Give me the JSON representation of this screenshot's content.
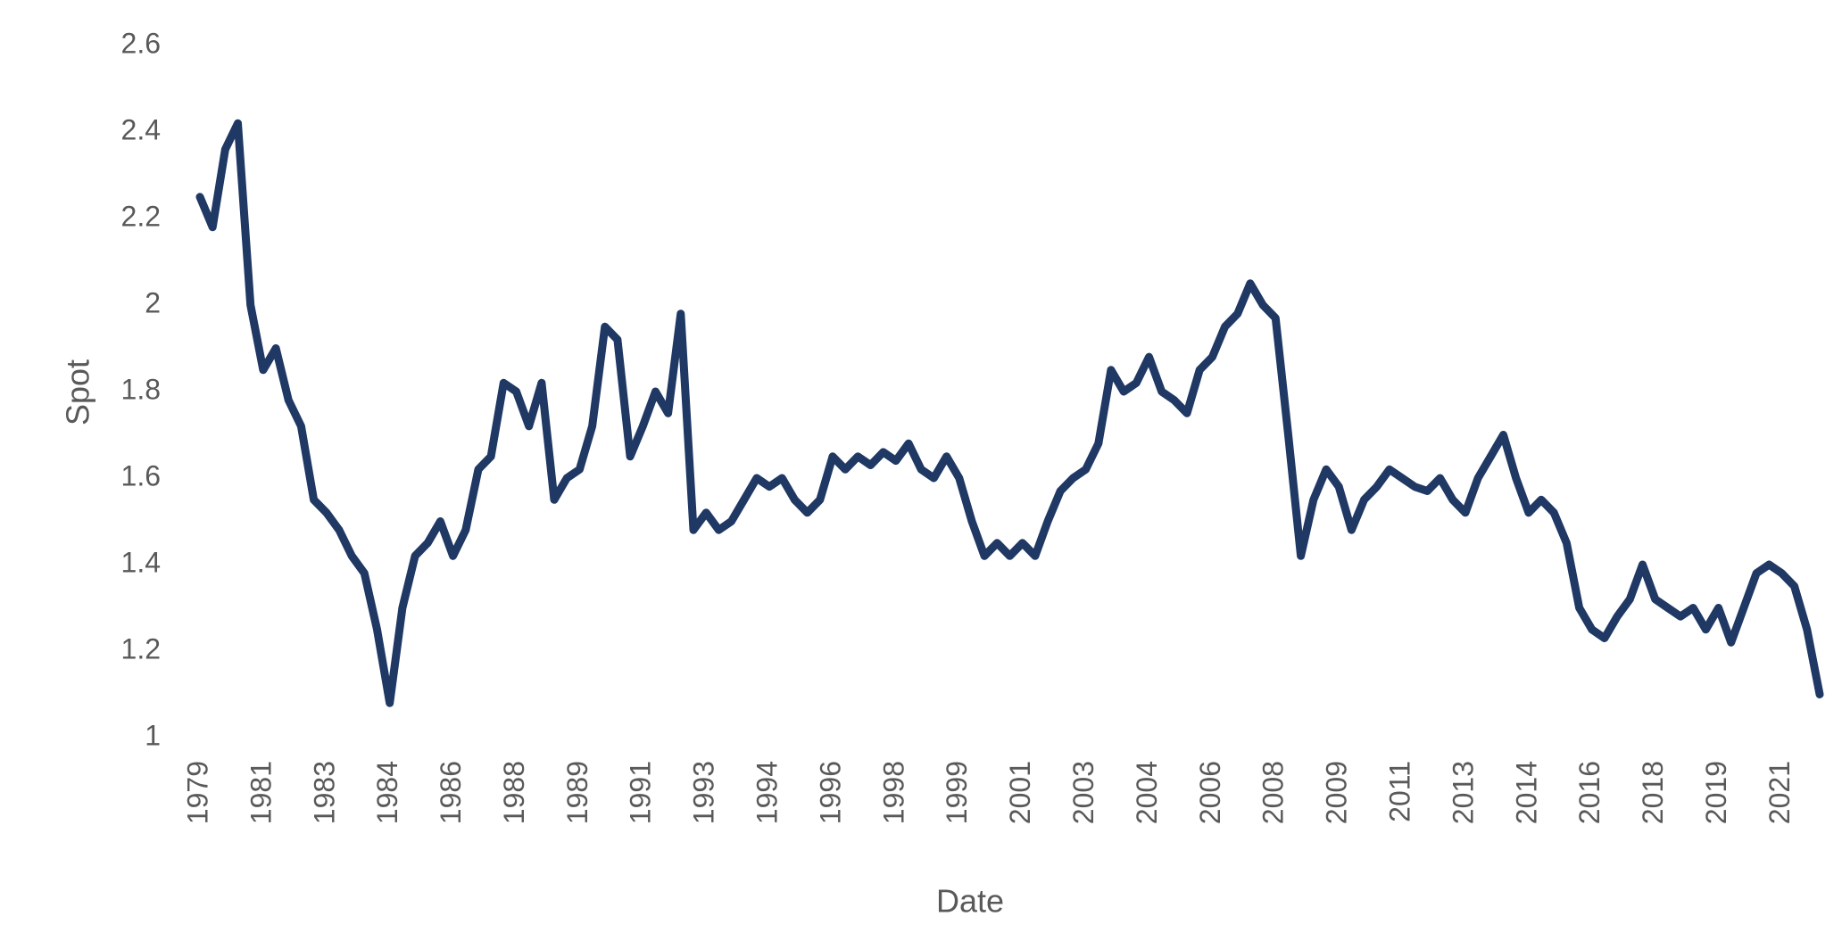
{
  "chart_data": {
    "type": "line",
    "x_label": "Date",
    "y_label": "Spot",
    "color": "#1f3864",
    "grid": false,
    "ylim": [
      1,
      2.6
    ],
    "yticks": [
      1,
      1.2,
      1.4,
      1.6,
      1.8,
      2,
      2.2,
      2.4,
      2.6
    ],
    "categories": [
      "1979",
      null,
      null,
      null,
      null,
      "1981",
      null,
      null,
      null,
      null,
      "1983",
      null,
      null,
      null,
      null,
      "1984",
      null,
      null,
      null,
      null,
      "1986",
      null,
      null,
      null,
      null,
      "1988",
      null,
      null,
      null,
      null,
      "1989",
      null,
      null,
      null,
      null,
      "1991",
      null,
      null,
      null,
      null,
      "1993",
      null,
      null,
      null,
      null,
      "1994",
      null,
      null,
      null,
      null,
      "1996",
      null,
      null,
      null,
      null,
      "1998",
      null,
      null,
      null,
      null,
      "1999",
      null,
      null,
      null,
      null,
      "2001",
      null,
      null,
      null,
      null,
      "2003",
      null,
      null,
      null,
      null,
      "2004",
      null,
      null,
      null,
      null,
      "2006",
      null,
      null,
      null,
      null,
      "2008",
      null,
      null,
      null,
      null,
      "2009",
      null,
      null,
      null,
      null,
      "2011",
      null,
      null,
      null,
      null,
      "2013",
      null,
      null,
      null,
      null,
      "2014",
      null,
      null,
      null,
      null,
      "2016",
      null,
      null,
      null,
      null,
      "2018",
      null,
      null,
      null,
      null,
      "2019",
      null,
      null,
      null,
      null,
      "2021",
      null,
      null,
      null
    ],
    "values": [
      2.25,
      2.18,
      2.36,
      2.42,
      2.0,
      1.85,
      1.9,
      1.78,
      1.72,
      1.55,
      1.52,
      1.48,
      1.42,
      1.38,
      1.25,
      1.08,
      1.3,
      1.42,
      1.45,
      1.5,
      1.42,
      1.48,
      1.62,
      1.65,
      1.82,
      1.8,
      1.72,
      1.82,
      1.55,
      1.6,
      1.62,
      1.72,
      1.95,
      1.92,
      1.65,
      1.72,
      1.8,
      1.75,
      1.98,
      1.48,
      1.52,
      1.48,
      1.5,
      1.55,
      1.6,
      1.58,
      1.6,
      1.55,
      1.52,
      1.55,
      1.65,
      1.62,
      1.65,
      1.63,
      1.66,
      1.64,
      1.68,
      1.62,
      1.6,
      1.65,
      1.6,
      1.5,
      1.42,
      1.45,
      1.42,
      1.45,
      1.42,
      1.5,
      1.57,
      1.6,
      1.62,
      1.68,
      1.85,
      1.8,
      1.82,
      1.88,
      1.8,
      1.78,
      1.75,
      1.85,
      1.88,
      1.95,
      1.98,
      2.05,
      2.0,
      1.97,
      1.7,
      1.42,
      1.55,
      1.62,
      1.58,
      1.48,
      1.55,
      1.58,
      1.62,
      1.6,
      1.58,
      1.57,
      1.6,
      1.55,
      1.52,
      1.6,
      1.65,
      1.7,
      1.6,
      1.52,
      1.55,
      1.52,
      1.45,
      1.3,
      1.25,
      1.23,
      1.28,
      1.32,
      1.4,
      1.32,
      1.3,
      1.28,
      1.3,
      1.25,
      1.3,
      1.22,
      1.3,
      1.38,
      1.4,
      1.38,
      1.35,
      1.25,
      1.1
    ]
  }
}
